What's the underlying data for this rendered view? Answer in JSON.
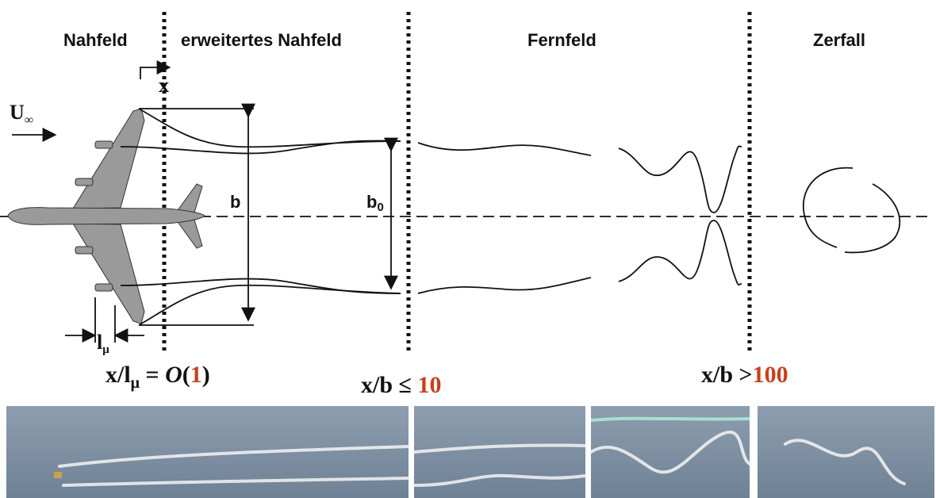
{
  "regions": [
    "Nahfeld",
    "erweitertes Nahfeld",
    "Fernfeld",
    "Zerfall"
  ],
  "labels": {
    "x": "x",
    "u_inf": {
      "base": "U",
      "sub": "∞"
    },
    "b": "b",
    "b0": {
      "base": "b",
      "sub": "0"
    },
    "l_mu": {
      "base": "l",
      "sub": "μ"
    }
  },
  "formulas": [
    {
      "parts": [
        "x/l",
        "μ",
        " = ",
        "O",
        "(",
        "1",
        ")"
      ]
    },
    {
      "parts": [
        "x/b ≤ ",
        "10"
      ]
    },
    {
      "parts": [
        "x/b >",
        "100"
      ]
    }
  ]
}
